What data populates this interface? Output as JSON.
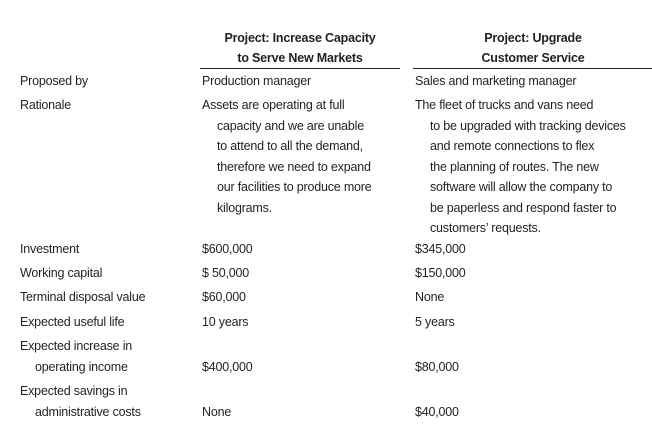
{
  "table": {
    "headers": [
      [
        "Project: Increase Capacity",
        "to Serve New Markets"
      ],
      [
        "Project: Upgrade",
        "Customer Service"
      ]
    ],
    "rows": [
      [
        [
          "Proposed by"
        ],
        [
          "Production manager"
        ],
        [
          "Sales and marketing manager"
        ]
      ],
      [
        [
          "Rationale"
        ],
        [
          "Assets are operating at full",
          "capacity and we are unable",
          "to attend to all the demand,",
          "therefore we need to expand",
          "our facilities to produce more",
          "kilograms."
        ],
        [
          "The fleet of trucks and vans need",
          "to be upgraded with tracking devices",
          "and remote connections to flex",
          "the planning of routes. The new",
          "software will allow the company to",
          "be paperless and respond faster to",
          "customers’ requests."
        ]
      ],
      [
        [
          "Investment"
        ],
        [
          "$600,000"
        ],
        [
          "$345,000"
        ]
      ],
      [
        [
          "Working capital"
        ],
        [
          "$ 50,000"
        ],
        [
          "$150,000"
        ]
      ],
      [
        [
          "Terminal disposal value"
        ],
        [
          "$60,000"
        ],
        [
          "None"
        ]
      ],
      [
        [
          "Expected useful life"
        ],
        [
          "10 years"
        ],
        [
          "5 years"
        ]
      ],
      [
        [
          "Expected increase in",
          "operating income"
        ],
        [
          "$400,000"
        ],
        [
          "$80,000"
        ]
      ],
      [
        [
          "Expected savings in",
          "administrative costs"
        ],
        [
          "None"
        ],
        [
          "$40,000"
        ]
      ]
    ]
  }
}
